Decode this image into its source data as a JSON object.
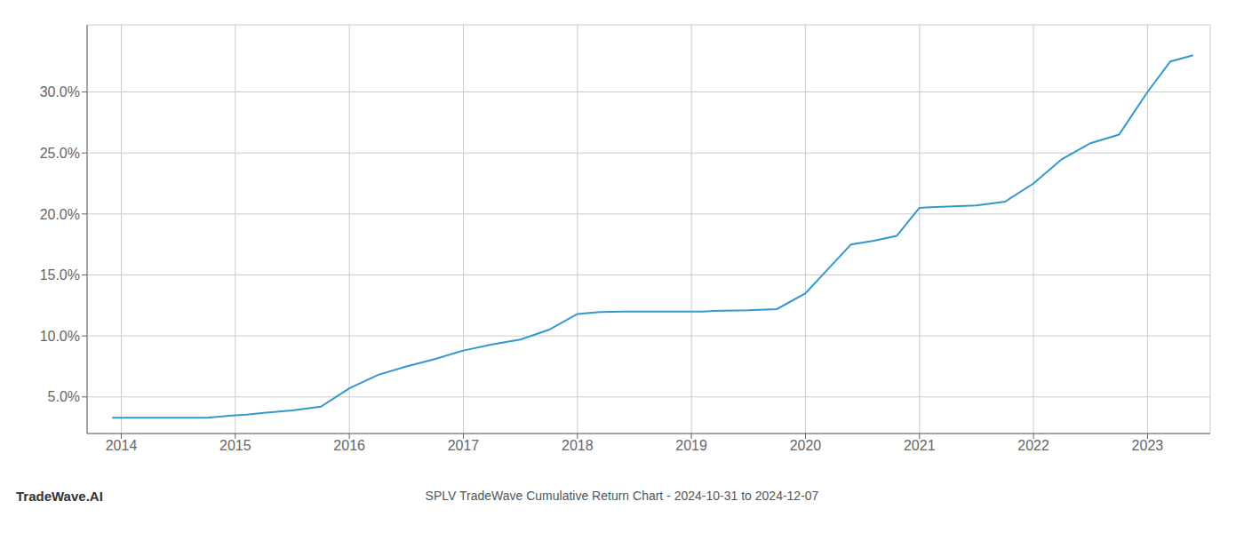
{
  "chart_data": {
    "type": "line",
    "title": "SPLV TradeWave Cumulative Return Chart - 2024-10-31 to 2024-12-07",
    "annotations": [
      {
        "text": "TradeWave.AI"
      }
    ],
    "color": "#3399cc",
    "grid": true,
    "x": [
      2013.92,
      2014.0,
      2014.25,
      2014.5,
      2014.75,
      2015.0,
      2015.1,
      2015.25,
      2015.5,
      2015.75,
      2016.0,
      2016.25,
      2016.5,
      2016.75,
      2017.0,
      2017.25,
      2017.5,
      2017.75,
      2018.0,
      2018.2,
      2018.4,
      2018.6,
      2018.8,
      2019.0,
      2019.1,
      2019.2,
      2019.5,
      2019.75,
      2020.0,
      2020.2,
      2020.4,
      2020.6,
      2020.8,
      2021.0,
      2021.1,
      2021.25,
      2021.5,
      2021.75,
      2022.0,
      2022.25,
      2022.5,
      2022.75,
      2023.0,
      2023.2,
      2023.4
    ],
    "values": [
      3.3,
      3.3,
      3.3,
      3.3,
      3.3,
      3.5,
      3.55,
      3.7,
      3.9,
      4.2,
      5.7,
      6.8,
      7.5,
      8.1,
      8.8,
      9.3,
      9.7,
      10.5,
      11.8,
      11.95,
      12.0,
      12.0,
      12.0,
      12.0,
      12.0,
      12.05,
      12.1,
      12.2,
      13.5,
      15.5,
      17.5,
      17.8,
      18.2,
      20.5,
      20.55,
      20.6,
      20.7,
      21.0,
      22.5,
      24.5,
      25.8,
      26.5,
      30.0,
      32.5,
      33.0
    ],
    "xlim": [
      2013.7,
      2023.55
    ],
    "xticks": [
      2014,
      2015,
      2016,
      2017,
      2018,
      2019,
      2020,
      2021,
      2022,
      2023
    ],
    "ylim": [
      2.0,
      35.5
    ],
    "yticks": [
      {
        "value": 5.0,
        "label": "5.0%"
      },
      {
        "value": 10.0,
        "label": "10.0%"
      },
      {
        "value": 15.0,
        "label": "15.0%"
      },
      {
        "value": 20.0,
        "label": "20.0%"
      },
      {
        "value": 25.0,
        "label": "25.0%"
      },
      {
        "value": 30.0,
        "label": "30.0%"
      }
    ]
  }
}
